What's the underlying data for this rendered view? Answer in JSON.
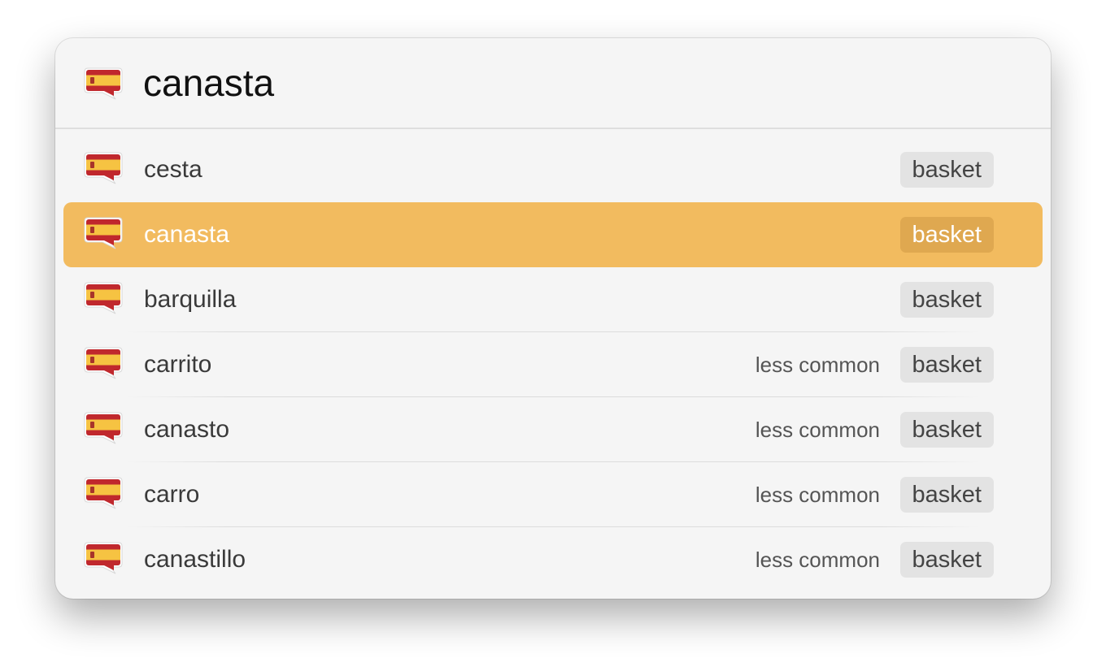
{
  "search": {
    "value": "canasta",
    "language_icon": "spain-flag-speech-bubble-icon"
  },
  "colors": {
    "selection": "#f2bb5f",
    "flag_red": "#c0282d",
    "flag_yellow": "#f6c342"
  },
  "results": [
    {
      "word": "cesta",
      "note": "",
      "tag": "basket",
      "selected": false
    },
    {
      "word": "canasta",
      "note": "",
      "tag": "basket",
      "selected": true
    },
    {
      "word": "barquilla",
      "note": "",
      "tag": "basket",
      "selected": false
    },
    {
      "word": "carrito",
      "note": "less common",
      "tag": "basket",
      "selected": false
    },
    {
      "word": "canasto",
      "note": "less common",
      "tag": "basket",
      "selected": false
    },
    {
      "word": "carro",
      "note": "less common",
      "tag": "basket",
      "selected": false
    },
    {
      "word": "canastillo",
      "note": "less common",
      "tag": "basket",
      "selected": false
    }
  ]
}
